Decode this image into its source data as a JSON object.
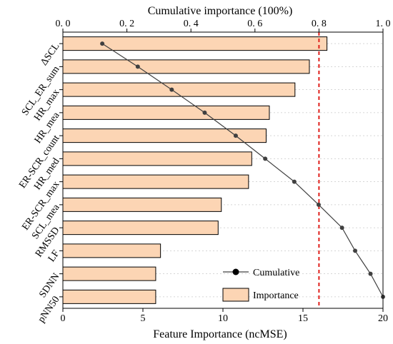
{
  "chart_data": {
    "type": "bar",
    "orientation": "horizontal",
    "categories": [
      "ΔSCL",
      "SCL_ER_sum",
      "HR_max",
      "HR_mea",
      "ER-SCR_count",
      "HR_med",
      "ER-SCR_max",
      "SCL_mea",
      "RMSSD",
      "LF",
      "SDNN",
      "pNN50"
    ],
    "series": [
      {
        "name": "Importance",
        "axis": "bottom",
        "values": [
          16.5,
          15.4,
          14.5,
          12.9,
          12.7,
          11.8,
          11.6,
          9.9,
          9.7,
          6.1,
          5.8,
          5.8
        ],
        "color": "#fcd5b4"
      },
      {
        "name": "Cumulative",
        "axis": "top",
        "values": [
          0.123,
          0.234,
          0.34,
          0.443,
          0.54,
          0.632,
          0.723,
          0.799,
          0.872,
          0.913,
          0.961,
          1.0
        ],
        "color": "#404040"
      }
    ],
    "xlabel_bottom": "Feature Importance (ncMSE)",
    "xlabel_top": "Cumulative importance (100%)",
    "xlim_bottom": [
      0,
      20
    ],
    "xticks_bottom": [
      "0",
      "5",
      "10",
      "15",
      "20"
    ],
    "xlim_top": [
      0,
      1.0
    ],
    "xticks_top": [
      "0. 0",
      "0. 2",
      "0. 4",
      "0. 6",
      "0. 8",
      "1. 0"
    ],
    "threshold": {
      "axis": "top",
      "value": 0.8,
      "color": "#e0201b",
      "style": "dashed"
    },
    "grid": "horizontal-dotted",
    "legend_position": "bottom-right",
    "legend": [
      {
        "key": "cumulative",
        "label": "Cumulative"
      },
      {
        "key": "importance",
        "label": "Importance"
      }
    ]
  }
}
